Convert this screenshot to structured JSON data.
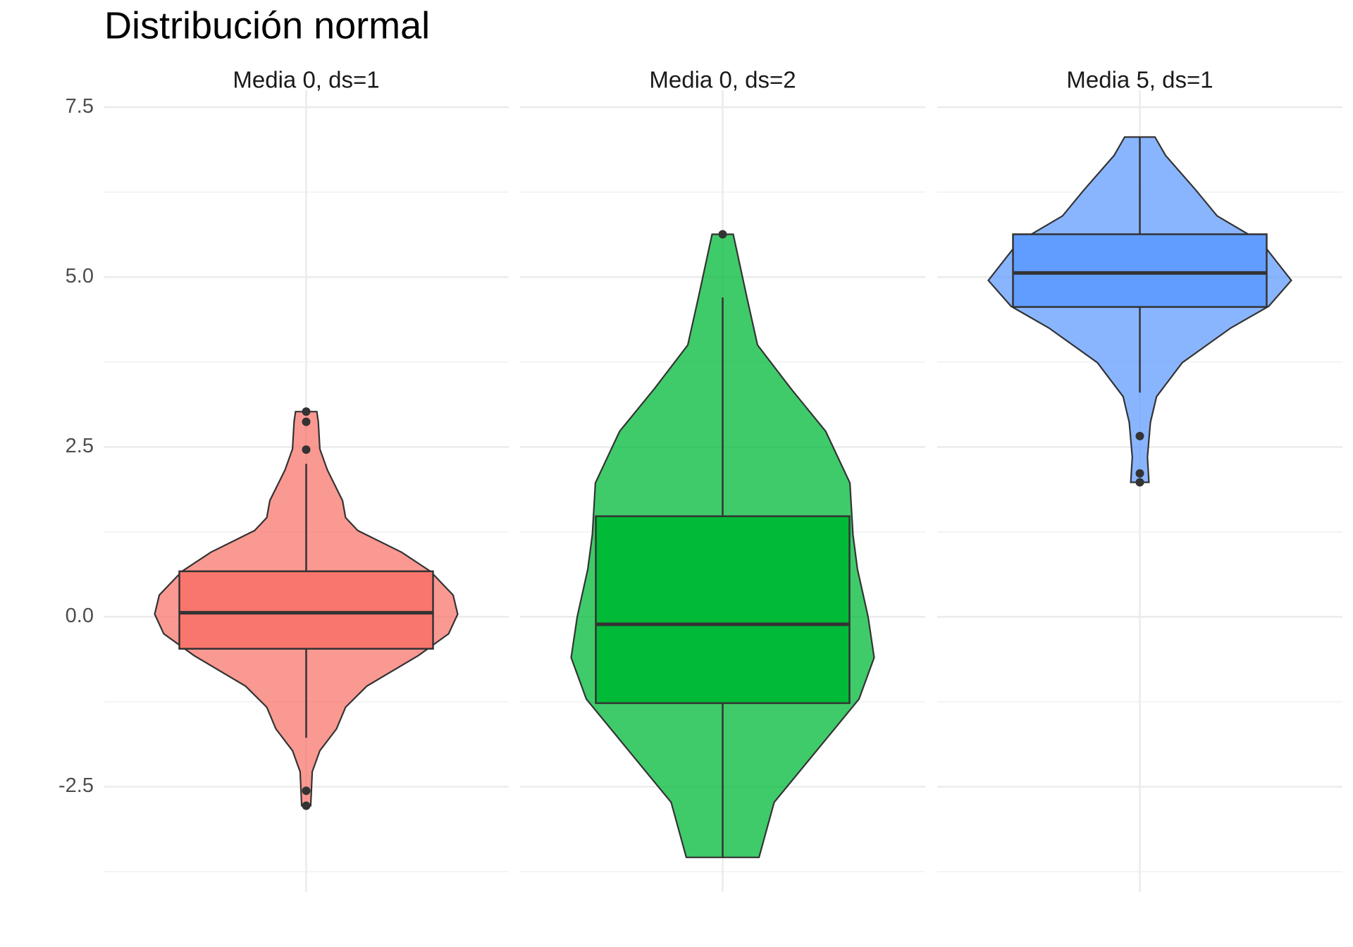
{
  "chart_data": {
    "type": "violin",
    "title": "Distribución normal",
    "ylim": [
      -4.05,
      7.75
    ],
    "yticks": [
      -2.5,
      {
        "value": 0,
        "label": "0.0"
      },
      2.5,
      {
        "value": 5,
        "label": "5.0"
      },
      7.5
    ],
    "yminorticks": [
      -3.75,
      -1.25,
      1.25,
      3.75,
      6.25
    ],
    "grid": true,
    "panels": [
      {
        "name": "Media 0, ds=1",
        "color": "#F8766D",
        "violin": {
          "y": [
            3.02,
            2.87,
            2.47,
            2.16,
            1.71,
            1.46,
            1.27,
            0.95,
            0.67,
            0.32,
            0.04,
            -0.25,
            -0.57,
            -1.02,
            -1.33,
            -1.65,
            -1.97,
            -2.28,
            -2.78
          ],
          "density": [
            0.07,
            0.08,
            0.09,
            0.14,
            0.24,
            0.26,
            0.34,
            0.63,
            0.82,
            0.97,
            1.0,
            0.94,
            0.74,
            0.4,
            0.26,
            0.2,
            0.09,
            0.04,
            0.03
          ]
        },
        "box": {
          "whisker_low": -1.78,
          "q1": -0.47,
          "median": 0.06,
          "q3": 0.67,
          "whisker_high": 2.25
        },
        "outliers": [
          3.02,
          2.87,
          2.46,
          -2.56,
          -2.78
        ]
      },
      {
        "name": "Media 0, ds=2",
        "color": "#00BA38",
        "violin": {
          "y": [
            5.63,
            4.7,
            4.0,
            3.36,
            2.73,
            1.97,
            1.21,
            0.7,
            0.0,
            -0.6,
            -1.21,
            -1.97,
            -2.73,
            -3.54
          ],
          "density": [
            0.07,
            0.16,
            0.23,
            0.45,
            0.68,
            0.84,
            0.86,
            0.89,
            0.96,
            1.0,
            0.9,
            0.62,
            0.34,
            0.24
          ]
        },
        "box": {
          "whisker_low": -3.54,
          "q1": -1.27,
          "median": -0.11,
          "q3": 1.48,
          "whisker_high": 4.7
        },
        "outliers": [
          5.63
        ]
      },
      {
        "name": "Media 5, ds=1",
        "color": "#619CFF",
        "violin": {
          "y": [
            7.06,
            6.79,
            6.28,
            5.9,
            5.52,
            4.95,
            4.57,
            4.25,
            3.74,
            3.24,
            2.86,
            2.35,
            1.98
          ],
          "density": [
            0.1,
            0.17,
            0.37,
            0.51,
            0.8,
            1.0,
            0.85,
            0.6,
            0.28,
            0.11,
            0.07,
            0.05,
            0.06
          ]
        },
        "box": {
          "whisker_low": 3.3,
          "q1": 4.56,
          "median": 5.06,
          "q3": 5.63,
          "whisker_high": 7.06
        },
        "outliers": [
          2.66,
          2.11,
          1.98
        ]
      }
    ]
  }
}
